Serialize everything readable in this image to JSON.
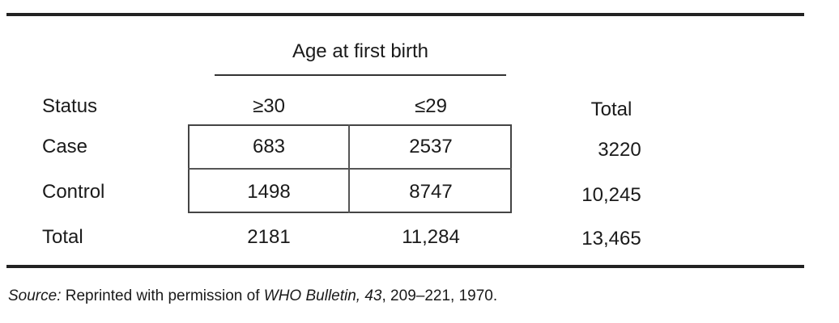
{
  "table": {
    "spanner_header": "Age at first birth",
    "columns": [
      "Status",
      "≥30",
      "≤29",
      "Total"
    ],
    "rows": [
      {
        "status": "Case",
        "ge30": "683",
        "le29": "2537",
        "total": "3220"
      },
      {
        "status": "Control",
        "ge30": "1498",
        "le29": "8747",
        "total": "10,245"
      },
      {
        "status": "Total",
        "ge30": "2181",
        "le29": "11,284",
        "total": "13,465"
      }
    ]
  },
  "source": {
    "label": "Source:",
    "text_before": " Reprinted with permission of ",
    "journal": "WHO Bulletin, 43",
    "text_after": ", 209–221, 1970."
  }
}
